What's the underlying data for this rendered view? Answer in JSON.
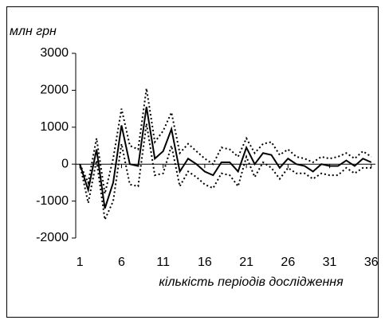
{
  "chart_data": {
    "type": "line",
    "ylabel": "млн грн",
    "xlabel": "кількість періодів дослідження",
    "x": [
      1,
      2,
      3,
      4,
      5,
      6,
      7,
      8,
      9,
      10,
      11,
      12,
      13,
      14,
      15,
      16,
      17,
      18,
      19,
      20,
      21,
      22,
      23,
      24,
      25,
      26,
      27,
      28,
      29,
      30,
      31,
      32,
      33,
      34,
      35,
      36
    ],
    "series": [
      {
        "color": "#000000",
        "dash": false,
        "values": [
          0,
          -700,
          400,
          -1200,
          -500,
          1050,
          0,
          -50,
          1550,
          150,
          350,
          950,
          -200,
          150,
          0,
          -200,
          -300,
          50,
          50,
          -200,
          450,
          0,
          300,
          250,
          -100,
          150,
          0,
          -50,
          -200,
          0,
          -50,
          -50,
          100,
          -50,
          150,
          50
        ]
      },
      {
        "color": "#000000",
        "dash": true,
        "values": [
          0,
          -500,
          700,
          -800,
          150,
          1500,
          500,
          400,
          2050,
          600,
          900,
          1400,
          300,
          550,
          350,
          150,
          0,
          450,
          400,
          200,
          700,
          300,
          550,
          600,
          250,
          400,
          200,
          150,
          50,
          200,
          150,
          200,
          300,
          150,
          350,
          200
        ]
      },
      {
        "color": "#000000",
        "dash": true,
        "values": [
          0,
          -1050,
          100,
          -1500,
          -1000,
          550,
          -550,
          -600,
          1100,
          -300,
          -250,
          500,
          -600,
          -200,
          -350,
          -550,
          -650,
          -250,
          -300,
          -600,
          200,
          -350,
          50,
          -100,
          -400,
          -100,
          -250,
          -250,
          -400,
          -250,
          -300,
          -300,
          -100,
          -250,
          -100,
          -100
        ]
      }
    ],
    "xlim": [
      0.5,
      36.5
    ],
    "xticks": [
      1,
      6,
      11,
      16,
      21,
      26,
      31,
      36
    ],
    "ylim": [
      -2000,
      3000
    ],
    "yticks": [
      -2000,
      -1000,
      0,
      1000,
      2000,
      3000
    ],
    "grid": false
  }
}
